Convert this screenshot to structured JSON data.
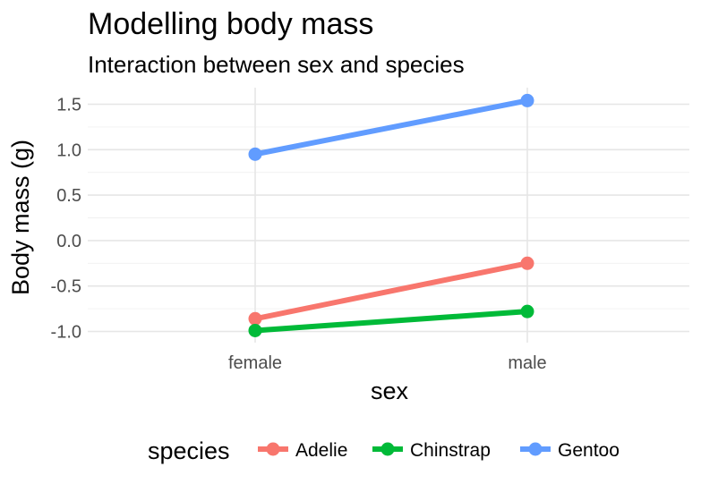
{
  "chart_data": {
    "type": "line",
    "title": "Modelling body mass",
    "subtitle": "Interaction between sex and species",
    "xlabel": "sex",
    "ylabel": "Body mass (g)",
    "categories": [
      "female",
      "male"
    ],
    "ylim": [
      -1.1,
      1.7
    ],
    "yticks": [
      -1.0,
      -0.5,
      0.0,
      0.5,
      1.0,
      1.5
    ],
    "ytick_labels": [
      "-1.0",
      "-0.5",
      "0.0",
      "0.5",
      "1.0",
      "1.5"
    ],
    "grid": true,
    "legend": {
      "title": "species",
      "position": "bottom"
    },
    "series": [
      {
        "name": "Adelie",
        "color": "#F8766D",
        "values": [
          -0.86,
          -0.25
        ]
      },
      {
        "name": "Chinstrap",
        "color": "#00BA38",
        "values": [
          -0.99,
          -0.78
        ]
      },
      {
        "name": "Gentoo",
        "color": "#619CFF",
        "values": [
          0.95,
          1.54
        ]
      }
    ]
  }
}
